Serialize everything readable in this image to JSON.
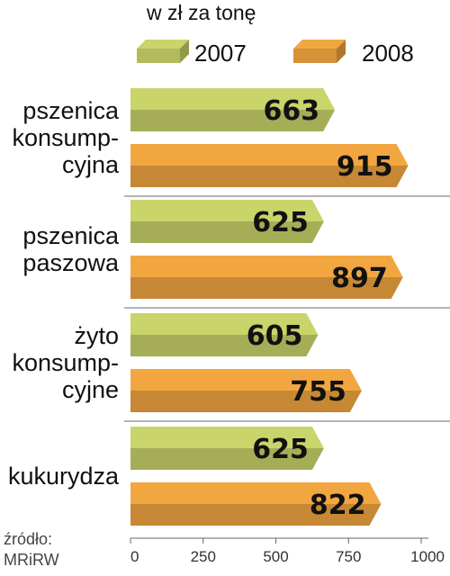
{
  "chart_data": {
    "type": "bar",
    "orientation": "horizontal",
    "title": "w zł za tonę",
    "categories": [
      [
        "pszenica",
        "konsump-",
        "cyjna"
      ],
      [
        "pszenica",
        "paszowa"
      ],
      [
        "żyto",
        "konsump-",
        "cyjne"
      ],
      [
        "kukurydza"
      ]
    ],
    "series": [
      {
        "name": "2007",
        "values": [
          663,
          625,
          605,
          625
        ],
        "color": "#c9d46a"
      },
      {
        "name": "2008",
        "values": [
          915,
          897,
          755,
          822
        ],
        "color": "#f2a640"
      }
    ],
    "xlim": [
      0,
      1000
    ],
    "xticks": [
      "0",
      "250",
      "500",
      "750",
      "1000"
    ],
    "legend_position": "top",
    "grid": false
  },
  "source": {
    "line1": "źródło:",
    "line2": "MRiRW"
  }
}
